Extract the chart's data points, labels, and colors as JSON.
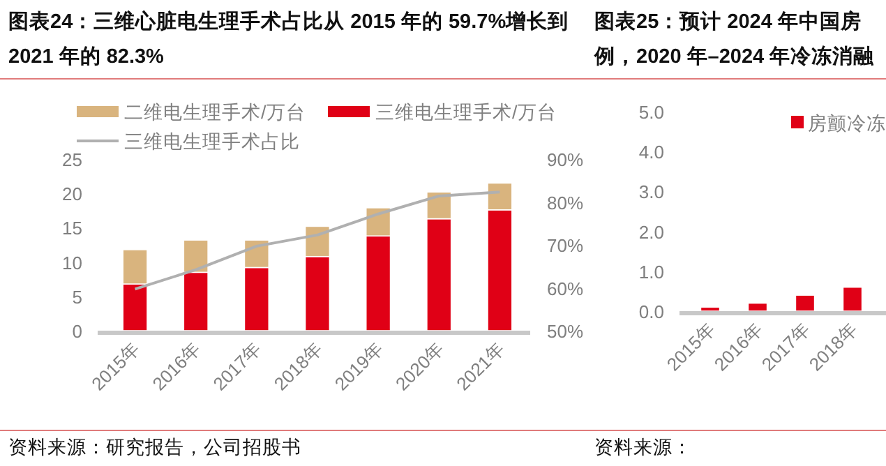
{
  "chart_data": [
    {
      "type": "bar",
      "stacked": true,
      "title": "图表24：三维心脏电生理手术占比从 2015 年的 59.7%增长到 2021 年的 82.3%",
      "categories": [
        "2015年",
        "2016年",
        "2017年",
        "2018年",
        "2019年",
        "2020年",
        "2021年"
      ],
      "series": [
        {
          "name": "三维电生理手术/万台",
          "color": "#e00016",
          "values": [
            6.8,
            8.5,
            9.2,
            10.8,
            13.8,
            16.3,
            17.6
          ]
        },
        {
          "name": "二维电生理手术/万台",
          "color": "#d9b47e",
          "values": [
            5.0,
            4.7,
            4.0,
            4.4,
            4.1,
            3.9,
            3.9
          ]
        },
        {
          "name": "三维电生理手术占比",
          "type": "line",
          "axis": "y2",
          "color": "#b0b0b0",
          "values": [
            59.7,
            64.2,
            69.7,
            72.3,
            77.2,
            81.4,
            82.3
          ]
        }
      ],
      "ylim": [
        0,
        25
      ],
      "yticks": [
        0,
        5,
        10,
        15,
        20,
        25
      ],
      "y2lim": [
        50,
        90
      ],
      "y2ticks": [
        {
          "value": 50,
          "label": "50%"
        },
        {
          "value": 60,
          "label": "60%"
        },
        {
          "value": 70,
          "label": "70%"
        },
        {
          "value": 80,
          "label": "80%"
        },
        {
          "value": 90,
          "label": "90%"
        }
      ],
      "legend": "top",
      "grid": false,
      "annotations": [
        "资料来源：研究报告，公司招股书"
      ]
    },
    {
      "type": "bar",
      "title": "图表25：预计 2024 年中国房",
      "subtitle": "例，2020 年–2024 年冷冻消融",
      "categories": [
        "2015年",
        "2016年",
        "2017年",
        "2018年"
      ],
      "series": [
        {
          "name": "房颤冷冻",
          "color": "#e00016",
          "values": [
            0.1,
            0.2,
            0.4,
            0.6
          ]
        }
      ],
      "ylim": [
        0,
        5
      ],
      "yticks": [
        {
          "value": 0,
          "label": "0.0"
        },
        {
          "value": 1,
          "label": "1.0"
        },
        {
          "value": 2,
          "label": "2.0"
        },
        {
          "value": 3,
          "label": "3.0"
        },
        {
          "value": 4,
          "label": "4.0"
        },
        {
          "value": 5,
          "label": "5.0"
        }
      ],
      "legend": "top right",
      "grid": false,
      "annotations": [
        "资料来源："
      ]
    }
  ]
}
